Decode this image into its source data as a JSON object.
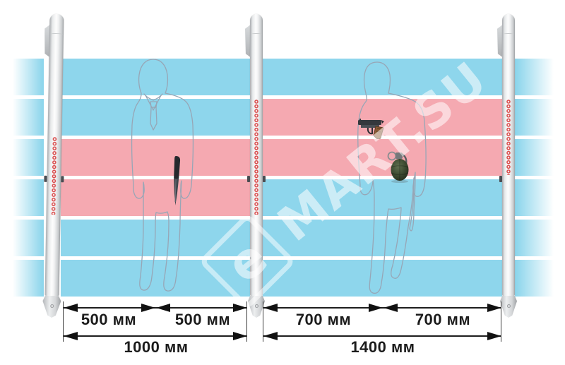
{
  "watermark": {
    "logo_letter": "e",
    "text": "MART.SU"
  },
  "colors": {
    "stripe_blue": "#8ed6ec",
    "stripe_pink": "#f5a9b1",
    "led_red": "#d94b4b",
    "dimension_text": "#1b1b1b",
    "silhouette_outline": "#97a6b6"
  },
  "zones": {
    "band_count": 6,
    "left_edge_fade": [
      "blue",
      "blue",
      "blue",
      "blue",
      "blue",
      "blue"
    ],
    "left_passage": [
      "blue",
      "blue",
      "pink",
      "pink",
      "blue",
      "blue"
    ],
    "right_passage": [
      "blue",
      "pink",
      "pink",
      "blue",
      "blue",
      "blue"
    ],
    "right_edge_fade": [
      "blue",
      "blue",
      "blue",
      "blue",
      "blue",
      "blue"
    ]
  },
  "dimensions": {
    "left": {
      "segments": [
        "500 мм",
        "500 мм"
      ],
      "total": "1000 мм"
    },
    "right": {
      "segments": [
        "700 мм",
        "700 мм"
      ],
      "total": "1400 мм"
    }
  },
  "threat_items": [
    "knife",
    "pistol",
    "grenade"
  ]
}
